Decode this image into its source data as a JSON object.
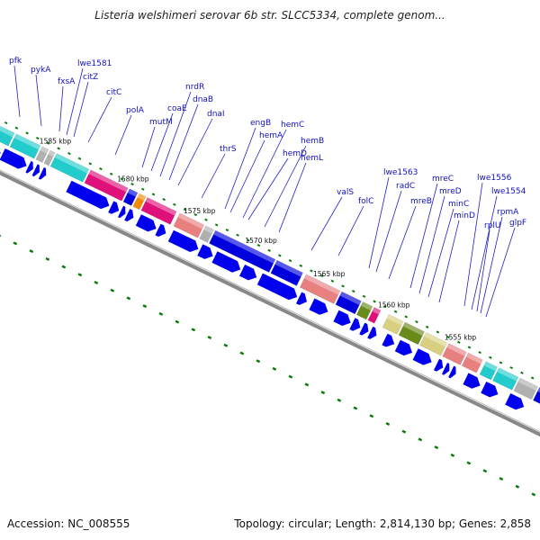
{
  "title": "Listeria welshimeri serovar 6b str. SLCC5334, complete genom...",
  "footer": {
    "accession": "Accession: NC_008555",
    "summary": "Topology: circular; Length: 2,814,130 bp; Genes: 2,858"
  },
  "scale_labels": [
    "1585 kbp",
    "1580 kbp",
    "1575 kbp",
    "1570 kbp",
    "1565 kbp",
    "1560 kbp",
    "1555 kbp"
  ],
  "gene_labels": [
    "pfk",
    "pykA",
    "fxsA",
    "lwe1581",
    "citZ",
    "citC",
    "polA",
    "mutM",
    "coaE",
    "nrdR",
    "dnaB",
    "dnaI",
    "thrS",
    "engB",
    "hemA",
    "hemC",
    "hemD",
    "hemB",
    "hemL",
    "valS",
    "folC",
    "lwe1563",
    "radC",
    "mreB",
    "mreC",
    "mreD",
    "minC",
    "minD",
    "lwe1556",
    "lwe1554",
    "rpmA",
    "rplU",
    "glpF"
  ],
  "colors": {
    "gene_label": "#1010c0",
    "forward_arrows": "#0000ee",
    "backbone": "#888888",
    "gc_ticks": "#0a7a0a",
    "cog_cyan": "#22cccc",
    "cog_magenta": "#e0107a",
    "cog_salmon": "#e88080",
    "cog_blue": "#0000dd",
    "cog_khaki": "#d8d080",
    "cog_olive": "#6a8a1a",
    "cog_gray": "#b0b0b0",
    "cog_orange": "#f08a00"
  }
}
